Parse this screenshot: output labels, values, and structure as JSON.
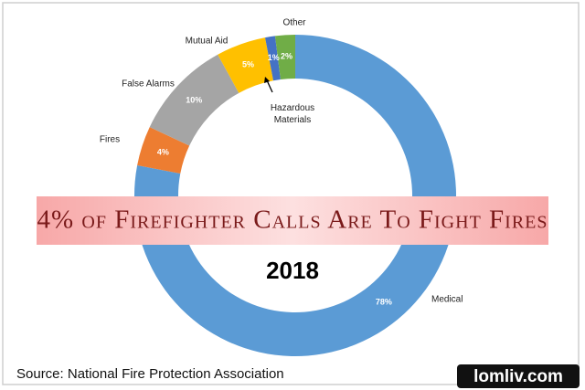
{
  "chart_data": {
    "type": "donut",
    "title": "4% of Firefighter Calls Are To Fight Fires",
    "subtitle": "2018",
    "source": "Source: National Fire Protection Association",
    "watermark": "lomliv.com",
    "categories": [
      "Medical",
      "Fires",
      "False Alarms",
      "Mutual Aid",
      "Hazardous Materials",
      "Other"
    ],
    "values": [
      78,
      4,
      10,
      5,
      1,
      2
    ],
    "value_labels": [
      "78%",
      "4%",
      "10%",
      "5%",
      "1%",
      "2%"
    ],
    "colors": [
      "#5b9bd5",
      "#ed7d31",
      "#a5a5a5",
      "#ffc000",
      "#4472c4",
      "#70ad47"
    ]
  }
}
